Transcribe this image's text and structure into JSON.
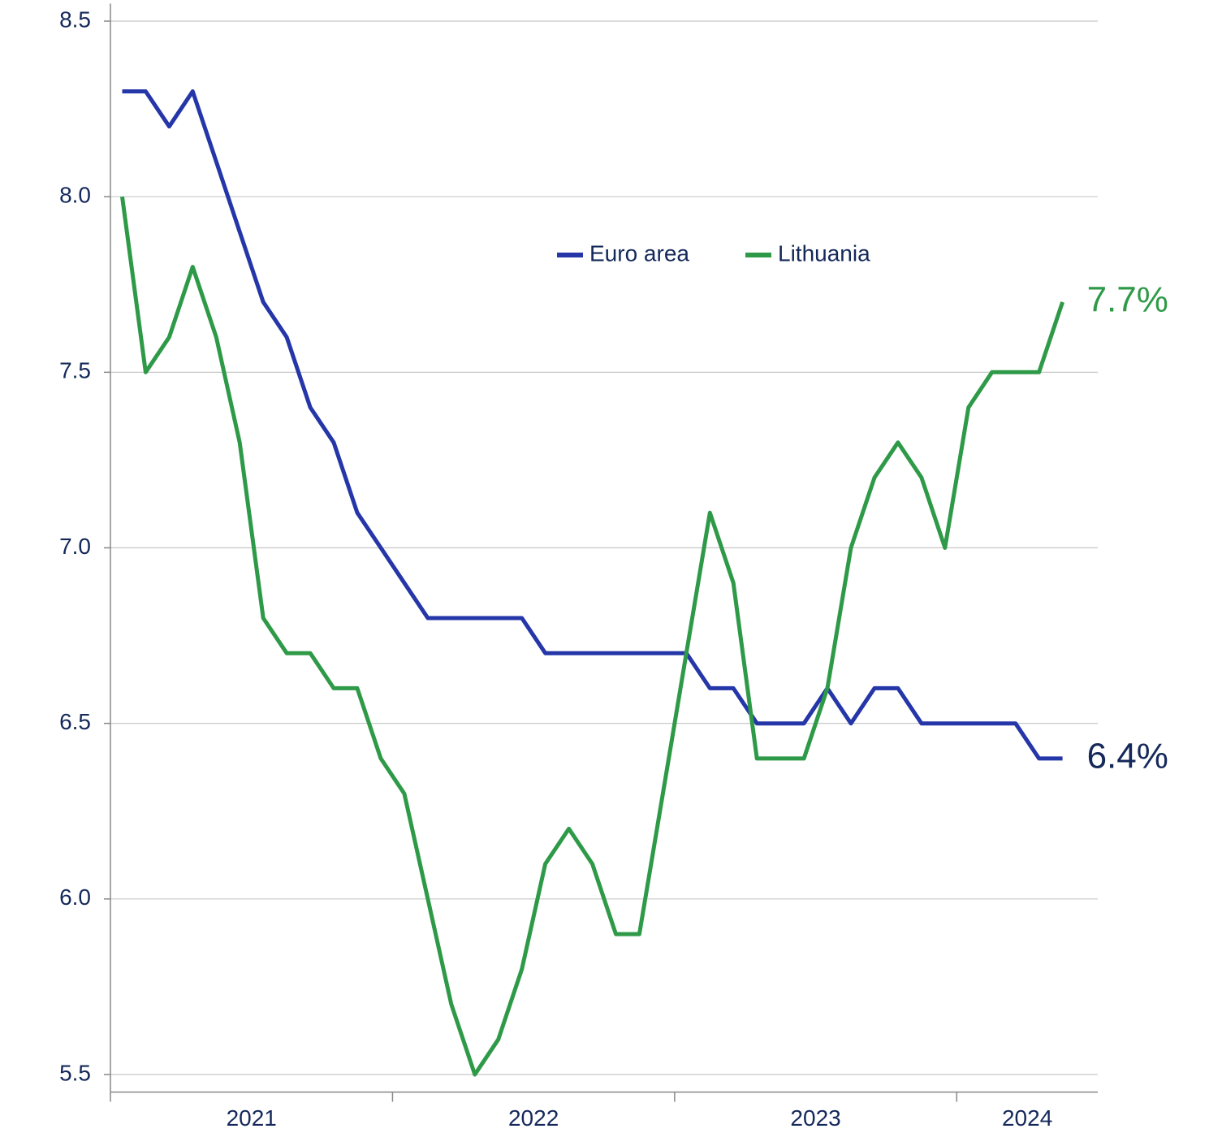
{
  "chart_data": {
    "type": "line",
    "categories": [
      null,
      null,
      null,
      null,
      null,
      null,
      null,
      null,
      null,
      null,
      null,
      null,
      null,
      null,
      null,
      null,
      null,
      null,
      null,
      null,
      null,
      null,
      null,
      null,
      null,
      null,
      null,
      null,
      null,
      null,
      null,
      null,
      null,
      null,
      null,
      null,
      null,
      null,
      null,
      null,
      null,
      null
    ],
    "xgroups": [
      {
        "label": "2021",
        "count": 12
      },
      {
        "label": "2022",
        "count": 12
      },
      {
        "label": "2023",
        "count": 12
      },
      {
        "label": "2024",
        "count": 6
      }
    ],
    "series": [
      {
        "name": "Euro area",
        "color": "#2536a8",
        "label_color": "#14285a",
        "end_label": "6.4%",
        "values": [
          8.3,
          8.3,
          8.2,
          8.3,
          8.1,
          7.9,
          7.7,
          7.6,
          7.4,
          7.3,
          7.1,
          7.0,
          6.9,
          6.8,
          6.8,
          6.8,
          6.8,
          6.8,
          6.7,
          6.7,
          6.7,
          6.7,
          6.7,
          6.7,
          6.7,
          6.6,
          6.6,
          6.5,
          6.5,
          6.5,
          6.6,
          6.5,
          6.6,
          6.6,
          6.5,
          6.5,
          6.5,
          6.5,
          6.5,
          6.4,
          6.4,
          null
        ]
      },
      {
        "name": "Lithuania",
        "color": "#2e9a48",
        "label_color": "#2e9a48",
        "end_label": "7.7%",
        "values": [
          8.0,
          7.5,
          7.6,
          7.8,
          7.6,
          7.3,
          6.8,
          6.7,
          6.7,
          6.6,
          6.6,
          6.4,
          6.3,
          6.0,
          5.7,
          5.5,
          5.6,
          5.8,
          6.1,
          6.2,
          6.1,
          5.9,
          5.9,
          6.3,
          6.7,
          7.1,
          6.9,
          6.4,
          6.4,
          6.4,
          6.6,
          7.0,
          7.2,
          7.3,
          7.2,
          7.0,
          7.4,
          7.5,
          7.5,
          7.5,
          7.7,
          null
        ]
      }
    ],
    "ylim": [
      5.45,
      8.55
    ],
    "yticks": [
      {
        "value": 5.5,
        "label": "5.5"
      },
      {
        "value": 6.0,
        "label": "6.0"
      },
      {
        "value": 6.5,
        "label": "6.5"
      },
      {
        "value": 7.0,
        "label": "7.0"
      },
      {
        "value": 7.5,
        "label": "7.5"
      },
      {
        "value": 8.0,
        "label": "8.0"
      },
      {
        "value": 8.5,
        "label": "8.5"
      }
    ],
    "grid": true
  }
}
